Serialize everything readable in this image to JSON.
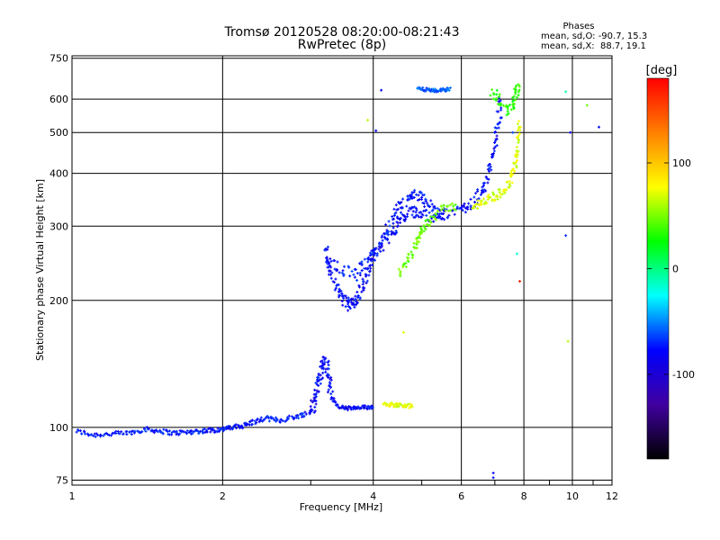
{
  "chart_data": {
    "type": "scatter",
    "title": "Tromsø 20120528 08:20:00-08:21:43",
    "subtitle": "RwPretec (8p)",
    "xlabel": "Frequency [MHz]",
    "ylabel": "Stationary phase Virtual Height [km]",
    "x_scale": "log",
    "y_scale": "log",
    "xlim": [
      1,
      12
    ],
    "ylim": [
      73,
      760
    ],
    "grid": true,
    "x_ticks": [
      1,
      2,
      4,
      6,
      8,
      10,
      12
    ],
    "x_tick_labels": [
      "1",
      "2",
      "4",
      "6",
      "8",
      "10",
      "12"
    ],
    "y_ticks": [
      75,
      100,
      200,
      300,
      400,
      500,
      600,
      750
    ],
    "y_tick_labels": [
      "75",
      "100",
      "200",
      "300",
      "400",
      "500",
      "600",
      "750"
    ],
    "colorbar": {
      "title": "[deg]",
      "range": [
        -180,
        180
      ],
      "ticks": [
        100,
        0,
        -100
      ],
      "tick_labels": [
        "100",
        "0",
        "-100"
      ]
    },
    "info": {
      "header": "Phases",
      "line1": "mean, sd,O: -90.7, 15.3",
      "line2": "mean, sd,X:  88.7, 19.1"
    },
    "traces": [
      {
        "id": "E-layer",
        "phase": -95,
        "spread": 0.012,
        "points": [
          [
            1.02,
            98
          ],
          [
            1.1,
            96
          ],
          [
            1.2,
            96.5
          ],
          [
            1.3,
            97
          ],
          [
            1.4,
            99
          ],
          [
            1.5,
            98
          ],
          [
            1.6,
            97
          ],
          [
            1.7,
            97.5
          ],
          [
            1.8,
            98
          ],
          [
            1.9,
            98.5
          ],
          [
            2.0,
            99
          ],
          [
            2.1,
            100
          ],
          [
            2.2,
            101
          ],
          [
            2.3,
            103
          ],
          [
            2.45,
            105
          ],
          [
            2.6,
            104
          ],
          [
            2.8,
            106
          ],
          [
            2.95,
            108
          ]
        ]
      },
      {
        "id": "E-layer-cusp",
        "phase": -100,
        "spread": 0.03,
        "points": [
          [
            3.0,
            108
          ],
          [
            3.05,
            115
          ],
          [
            3.1,
            125
          ],
          [
            3.15,
            135
          ],
          [
            3.2,
            145
          ],
          [
            3.25,
            132
          ],
          [
            3.3,
            120
          ]
        ]
      },
      {
        "id": "Es-mid",
        "phase": -100,
        "spread": 0.01,
        "points": [
          [
            3.3,
            118
          ],
          [
            3.4,
            112
          ],
          [
            3.55,
            111
          ],
          [
            3.7,
            111
          ],
          [
            3.85,
            111.5
          ],
          [
            4.0,
            112
          ]
        ]
      },
      {
        "id": "Es-mid-yellow",
        "phase": 95,
        "spread": 0.01,
        "points": [
          [
            4.2,
            114
          ],
          [
            4.4,
            113
          ],
          [
            4.6,
            113
          ],
          [
            4.8,
            112
          ]
        ]
      },
      {
        "id": "F-O-lower",
        "phase": -100,
        "spread": 0.028,
        "points": [
          [
            3.2,
            270
          ],
          [
            3.3,
            230
          ],
          [
            3.4,
            210
          ],
          [
            3.5,
            200
          ],
          [
            3.6,
            195
          ],
          [
            3.7,
            200
          ],
          [
            3.8,
            215
          ],
          [
            3.9,
            235
          ],
          [
            4.0,
            255
          ],
          [
            4.2,
            275
          ],
          [
            4.4,
            295
          ],
          [
            4.6,
            315
          ],
          [
            4.8,
            325
          ],
          [
            5.0,
            320
          ],
          [
            5.3,
            315
          ],
          [
            5.6,
            320
          ],
          [
            6.0,
            330
          ],
          [
            6.3,
            340
          ],
          [
            6.6,
            360
          ],
          [
            6.8,
            400
          ],
          [
            7.0,
            460
          ],
          [
            7.1,
            520
          ],
          [
            7.2,
            600
          ]
        ]
      },
      {
        "id": "F-O-upper",
        "phase": -95,
        "spread": 0.03,
        "points": [
          [
            3.2,
            250
          ],
          [
            3.4,
            240
          ],
          [
            3.7,
            230
          ],
          [
            3.9,
            245
          ],
          [
            4.1,
            270
          ],
          [
            4.3,
            300
          ],
          [
            4.5,
            330
          ],
          [
            4.7,
            350
          ],
          [
            4.9,
            355
          ],
          [
            5.1,
            340
          ],
          [
            5.3,
            325
          ],
          [
            5.6,
            320
          ]
        ]
      },
      {
        "id": "F-X-lower",
        "phase": 60,
        "spread": 0.02,
        "points": [
          [
            4.5,
            230
          ],
          [
            4.7,
            250
          ],
          [
            4.9,
            275
          ],
          [
            5.0,
            295
          ],
          [
            5.2,
            310
          ],
          [
            5.5,
            330
          ],
          [
            5.9,
            335
          ]
        ]
      },
      {
        "id": "F-X-upper",
        "phase": 90,
        "spread": 0.022,
        "points": [
          [
            6.3,
            335
          ],
          [
            6.6,
            340
          ],
          [
            6.9,
            350
          ],
          [
            7.2,
            360
          ],
          [
            7.5,
            380
          ],
          [
            7.7,
            420
          ],
          [
            7.8,
            470
          ],
          [
            7.85,
            530
          ]
        ]
      },
      {
        "id": "F-X-cusp",
        "phase": 40,
        "spread": 0.03,
        "points": [
          [
            6.9,
            620
          ],
          [
            7.2,
            590
          ],
          [
            7.5,
            560
          ],
          [
            7.7,
            620
          ],
          [
            7.8,
            650
          ]
        ]
      },
      {
        "id": "Top-cluster",
        "phase": -75,
        "spread": 0.008,
        "points": [
          [
            4.9,
            635
          ],
          [
            5.1,
            632
          ],
          [
            5.3,
            628
          ],
          [
            5.5,
            630
          ],
          [
            5.7,
            635
          ]
        ]
      }
    ],
    "scatter_points": [
      {
        "x": 3.9,
        "y": 535,
        "phase": 80
      },
      {
        "x": 4.05,
        "y": 505,
        "phase": -100
      },
      {
        "x": 4.15,
        "y": 630,
        "phase": -100
      },
      {
        "x": 6.95,
        "y": 78,
        "phase": -100
      },
      {
        "x": 6.95,
        "y": 76,
        "phase": -100
      },
      {
        "x": 9.7,
        "y": 625,
        "phase": -10
      },
      {
        "x": 10.7,
        "y": 580,
        "phase": 60
      },
      {
        "x": 11.3,
        "y": 515,
        "phase": -100
      },
      {
        "x": 9.7,
        "y": 285,
        "phase": -90
      },
      {
        "x": 9.8,
        "y": 160,
        "phase": 80
      },
      {
        "x": 7.85,
        "y": 222,
        "phase": 170
      },
      {
        "x": 4.6,
        "y": 168,
        "phase": 90
      },
      {
        "x": 7.6,
        "y": 500,
        "phase": -80
      },
      {
        "x": 9.9,
        "y": 500,
        "phase": -100
      },
      {
        "x": 7.75,
        "y": 258,
        "phase": -20
      }
    ]
  },
  "colors": {
    "background": "#ffffff",
    "axes": "#000000",
    "grid": "#000000",
    "colorbar_stops": [
      "#ff0000",
      "#ff8000",
      "#ffff00",
      "#00ff00",
      "#00ffff",
      "#0000ff",
      "#4000a0",
      "#000000"
    ]
  }
}
